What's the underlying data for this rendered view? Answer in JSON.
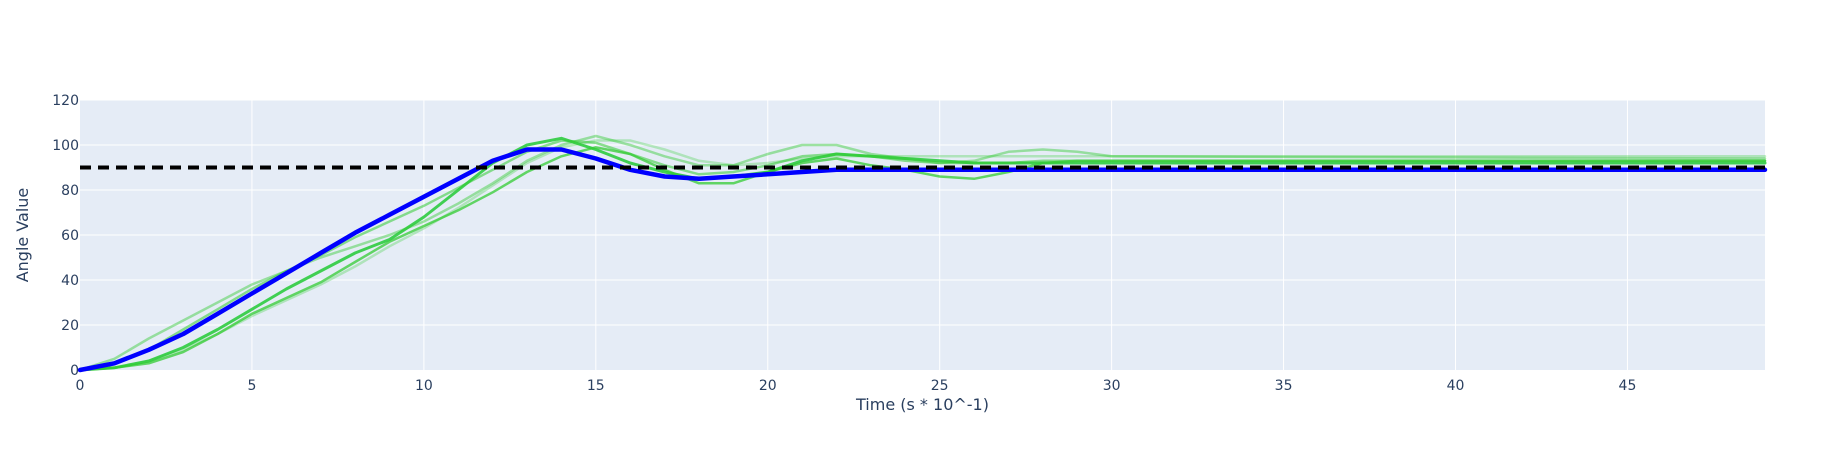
{
  "chart_data": {
    "type": "line",
    "title": "",
    "xlabel": "Time (s * 10^-1)",
    "ylabel": "Angle Value",
    "xlim": [
      0,
      49
    ],
    "ylim": [
      0,
      120
    ],
    "x_ticks": [
      0,
      5,
      10,
      15,
      20,
      25,
      30,
      35,
      40,
      45
    ],
    "y_ticks": [
      0,
      20,
      40,
      60,
      80,
      100,
      120
    ],
    "grid": true,
    "legend": "none",
    "colors": {
      "plot_background": "#e5ecf6",
      "grid": "#ffffff",
      "axis_text": "#2a3f5f",
      "target": "#000000",
      "main_series": "#0000ff",
      "trial_series": "#33cc33"
    },
    "target": {
      "value": 90,
      "style": "dashed",
      "color": "#000000"
    },
    "series": [
      {
        "color": "#2ecc40",
        "opacity": 0.9,
        "width": 3,
        "x": [
          0,
          1,
          2,
          3,
          4,
          5,
          6,
          7,
          8,
          9,
          10,
          11,
          12,
          13,
          14,
          15,
          16,
          17,
          18,
          19,
          20,
          21,
          22,
          23,
          24,
          25,
          26,
          27,
          28,
          29,
          30,
          49
        ],
        "y": [
          0,
          1,
          4,
          10,
          18,
          27,
          36,
          44,
          52,
          58,
          68,
          80,
          92,
          100,
          103,
          98,
          92,
          88,
          85,
          86,
          88,
          93,
          96,
          95,
          94,
          93,
          92,
          92,
          92,
          92,
          92,
          92
        ]
      },
      {
        "color": "#33cc33",
        "opacity": 0.75,
        "width": 2.5,
        "x": [
          0,
          1,
          2,
          3,
          4,
          5,
          6,
          7,
          8,
          9,
          10,
          11,
          12,
          13,
          14,
          15,
          16,
          17,
          18,
          19,
          20,
          21,
          22,
          23,
          24,
          25,
          26,
          27,
          28,
          29,
          30,
          49
        ],
        "y": [
          0,
          1,
          3,
          8,
          16,
          25,
          32,
          39,
          48,
          57,
          64,
          71,
          79,
          88,
          95,
          99,
          96,
          89,
          83,
          83,
          88,
          92,
          94,
          91,
          89,
          86,
          85,
          88,
          92,
          93,
          93,
          93
        ]
      },
      {
        "color": "#33cc33",
        "opacity": 0.55,
        "width": 2.5,
        "x": [
          0,
          1,
          2,
          3,
          4,
          5,
          6,
          7,
          8,
          9,
          10,
          11,
          12,
          13,
          14,
          15,
          16,
          17,
          18,
          19,
          20,
          21,
          22,
          23,
          24,
          25,
          26,
          27,
          28,
          29,
          30,
          49
        ],
        "y": [
          0,
          3,
          9,
          18,
          27,
          36,
          44,
          51,
          59,
          66,
          73,
          81,
          89,
          97,
          102,
          101,
          96,
          91,
          87,
          88,
          91,
          95,
          96,
          95,
          93,
          92,
          92,
          92,
          93,
          93,
          93,
          93
        ]
      },
      {
        "color": "#33cc33",
        "opacity": 0.45,
        "width": 2.5,
        "x": [
          0,
          1,
          2,
          3,
          4,
          5,
          6,
          7,
          8,
          9,
          10,
          11,
          12,
          13,
          14,
          15,
          16,
          17,
          18,
          19,
          20,
          21,
          22,
          23,
          24,
          25,
          26,
          27,
          28,
          29,
          30,
          49
        ],
        "y": [
          0,
          5,
          14,
          22,
          30,
          38,
          44,
          50,
          55,
          60,
          66,
          74,
          83,
          93,
          100,
          104,
          100,
          95,
          91,
          91,
          96,
          100,
          100,
          96,
          94,
          92,
          93,
          97,
          98,
          97,
          95,
          94
        ]
      },
      {
        "color": "#33cc33",
        "opacity": 0.3,
        "width": 2.5,
        "x": [
          0,
          1,
          2,
          3,
          4,
          5,
          6,
          7,
          8,
          9,
          10,
          11,
          12,
          13,
          14,
          15,
          16,
          17,
          18,
          19,
          20,
          21,
          22,
          23,
          24,
          25,
          26,
          27,
          28,
          29,
          30,
          49
        ],
        "y": [
          0,
          1,
          4,
          9,
          16,
          24,
          31,
          38,
          46,
          55,
          63,
          72,
          82,
          92,
          99,
          102,
          102,
          98,
          93,
          91,
          92,
          94,
          95,
          95,
          95,
          95,
          95,
          95,
          95,
          95,
          95,
          95
        ]
      },
      {
        "color": "#0000ff",
        "opacity": 1,
        "width": 4.5,
        "x": [
          0,
          1,
          2,
          3,
          4,
          5,
          6,
          7,
          8,
          9,
          10,
          11,
          12,
          13,
          14,
          15,
          16,
          17,
          18,
          19,
          20,
          21,
          22,
          23,
          24,
          25,
          26,
          27,
          28,
          29,
          30,
          49
        ],
        "y": [
          0,
          3,
          9,
          16,
          25,
          34,
          43,
          52,
          61,
          69,
          77,
          85,
          93,
          98,
          98,
          94,
          89,
          86,
          85,
          86,
          87,
          88,
          89,
          89,
          89,
          89,
          89,
          89,
          89,
          89,
          89,
          89
        ]
      }
    ]
  }
}
